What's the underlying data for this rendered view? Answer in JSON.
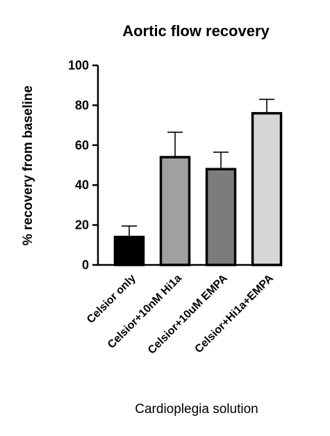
{
  "chart_data": {
    "type": "bar",
    "title": "Aortic flow recovery",
    "xlabel": "Cardioplegia solution",
    "ylabel": "% recovery from baseline",
    "categories": [
      "Celsior only",
      "Celsior+10nM Hi1a",
      "Celsior+10uM EMPA",
      "Celsior+Hi1a+EMPA"
    ],
    "values": [
      14,
      54,
      48,
      76
    ],
    "error_upper": [
      19.5,
      66.5,
      56.5,
      83
    ],
    "ylim": [
      0,
      100
    ],
    "yticks": [
      "0",
      "20",
      "40",
      "60",
      "80",
      "100"
    ],
    "bar_colors": [
      "#000000",
      "#a0a0a0",
      "#7c7c7c",
      "#d6d6d6"
    ],
    "grid": false,
    "legend": "none"
  }
}
